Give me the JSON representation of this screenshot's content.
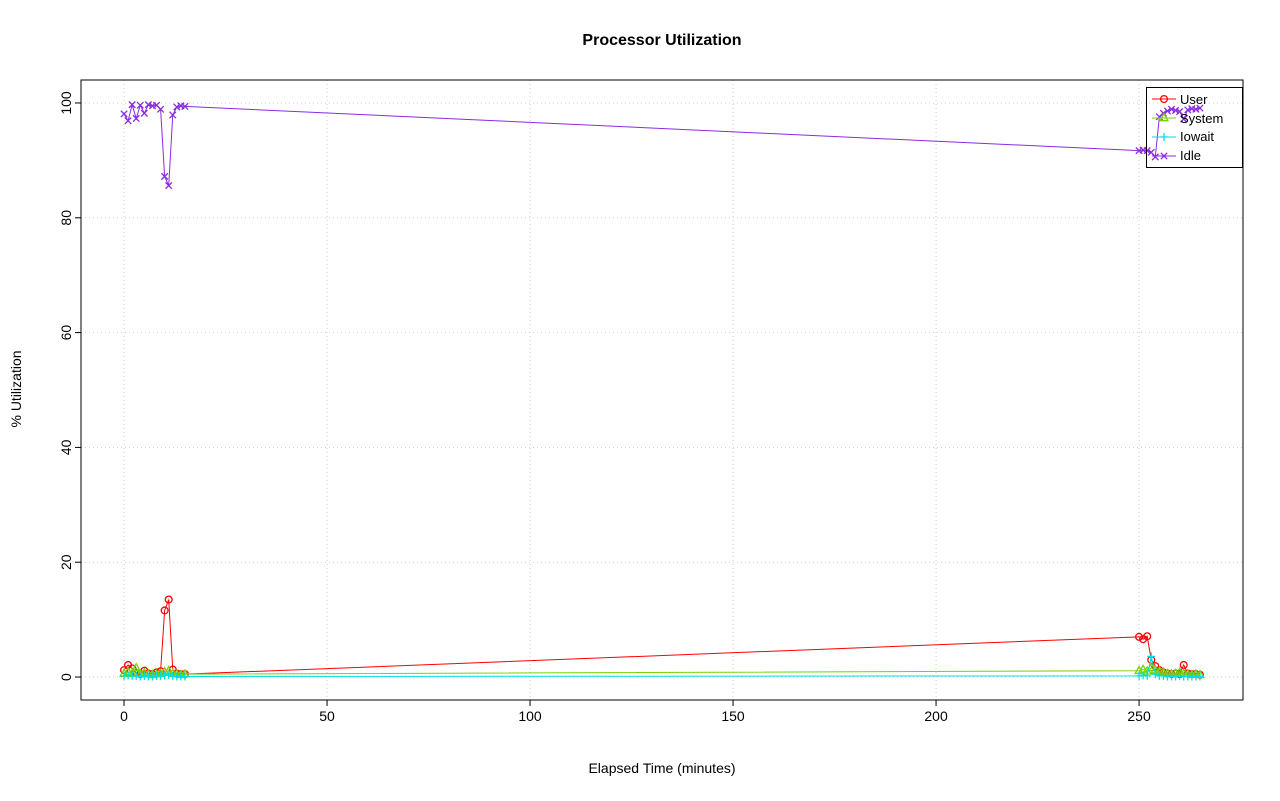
{
  "chart_data": {
    "type": "line",
    "title": "Processor Utilization",
    "xlabel": "Elapsed Time (minutes)",
    "ylabel": "% Utilization",
    "xlim": [
      -10.6,
      275.6
    ],
    "ylim": [
      -4,
      104
    ],
    "x_ticks": [
      0,
      50,
      100,
      150,
      200,
      250
    ],
    "y_ticks": [
      0,
      20,
      40,
      60,
      80,
      100
    ],
    "grid": true,
    "grid_color": "#cfcfcf",
    "axis_color": "#000000",
    "background": "#ffffff",
    "legend_position": "top-right",
    "x": [
      0,
      1,
      2,
      3,
      4,
      5,
      6,
      7,
      8,
      9,
      10,
      11,
      12,
      13,
      14,
      15,
      250,
      251,
      252,
      253,
      254,
      255,
      256,
      257,
      258,
      259,
      260,
      261,
      262,
      263,
      264,
      265
    ],
    "series": [
      {
        "name": "User",
        "color": "#ff0000",
        "marker": "circle",
        "values": [
          1.2,
          2.1,
          1.5,
          0.7,
          0.5,
          1.1,
          0.6,
          0.5,
          0.8,
          1.0,
          11.6,
          13.5,
          1.3,
          0.6,
          0.5,
          0.5,
          7.0,
          6.6,
          7.1,
          3.0,
          1.9,
          1.2,
          0.8,
          0.6,
          0.5,
          0.6,
          0.5,
          2.1,
          0.6,
          0.5,
          0.5,
          0.4
        ]
      },
      {
        "name": "System",
        "color": "#76d300",
        "marker": "triangle",
        "values": [
          0.6,
          0.9,
          0.6,
          1.6,
          0.5,
          0.7,
          0.5,
          0.4,
          0.5,
          0.6,
          0.9,
          1.1,
          0.6,
          0.5,
          0.4,
          0.5,
          1.1,
          1.3,
          1.0,
          1.6,
          1.2,
          1.0,
          0.8,
          0.6,
          0.5,
          0.6,
          0.8,
          0.6,
          0.5,
          0.4,
          0.5,
          0.4
        ]
      },
      {
        "name": "Iowait",
        "color": "#00dde8",
        "marker": "plus",
        "values": [
          0.2,
          0.3,
          0.2,
          0.2,
          0.1,
          0.2,
          0.1,
          0.1,
          0.2,
          0.2,
          0.3,
          0.4,
          0.2,
          0.1,
          0.1,
          0.1,
          0.2,
          0.3,
          0.2,
          3.6,
          0.5,
          0.2,
          0.2,
          0.1,
          0.1,
          0.1,
          0.2,
          0.1,
          0.1,
          0.1,
          0.1,
          0.1
        ]
      },
      {
        "name": "Idle",
        "color": "#8a2be2",
        "marker": "x",
        "values": [
          98.1,
          96.9,
          99.7,
          97.3,
          99.6,
          98.2,
          99.7,
          99.5,
          99.6,
          98.9,
          87.2,
          85.6,
          97.9,
          99.3,
          99.5,
          99.4,
          91.7,
          91.8,
          91.7,
          91.4,
          90.6,
          97.6,
          98.2,
          98.6,
          98.9,
          98.7,
          98.5,
          97.2,
          98.8,
          99.0,
          98.9,
          99.1
        ]
      }
    ]
  }
}
